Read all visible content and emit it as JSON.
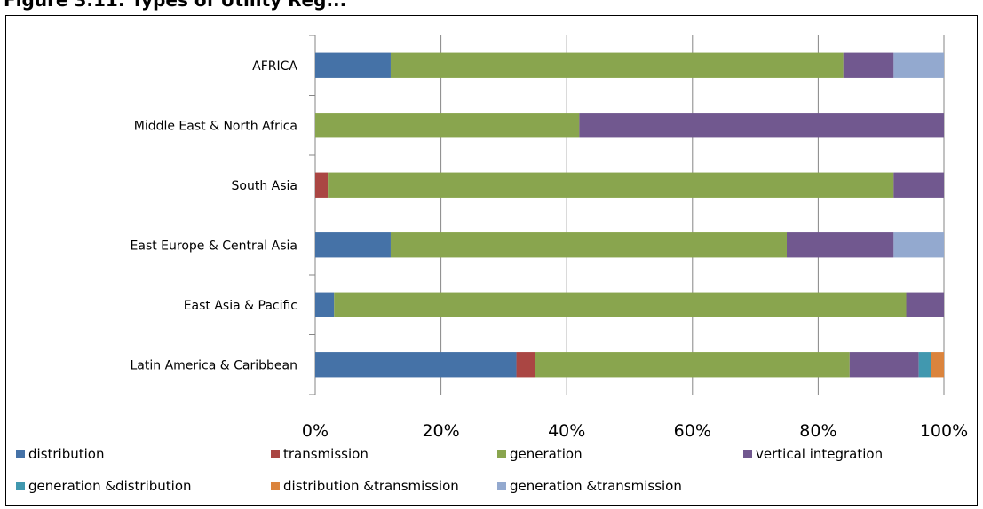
{
  "title_fragment": "Figure 3.11: Types of Utility Reg...",
  "chart_data": {
    "type": "bar",
    "orientation": "horizontal",
    "stacked": true,
    "percent": true,
    "categories": [
      "AFRICA",
      "Middle East & North Africa",
      "South Asia",
      "East Europe & Central Asia",
      "East Asia & Pacific",
      "Latin America & Caribbean"
    ],
    "series": [
      {
        "name": "distribution",
        "color": "#4572A7",
        "values": [
          12,
          0,
          0,
          12,
          3,
          32
        ]
      },
      {
        "name": "transmission",
        "color": "#AA4643",
        "values": [
          0,
          0,
          2,
          0,
          0,
          3
        ]
      },
      {
        "name": "generation",
        "color": "#89A54E",
        "values": [
          72,
          42,
          90,
          63,
          91,
          50
        ]
      },
      {
        "name": "vertical integration",
        "color": "#71588F",
        "values": [
          8,
          58,
          8,
          17,
          6,
          11
        ]
      },
      {
        "name": "generation &distribution",
        "color": "#4198AF",
        "values": [
          0,
          0,
          0,
          0,
          0,
          2
        ]
      },
      {
        "name": "distribution &transmission",
        "color": "#DB843D",
        "values": [
          0,
          0,
          0,
          0,
          0,
          2
        ]
      },
      {
        "name": "generation &transmission",
        "color": "#93A9CF",
        "values": [
          8,
          0,
          0,
          8,
          0,
          0
        ]
      }
    ],
    "xticks": [
      "0%",
      "20%",
      "40%",
      "60%",
      "80%",
      "100%"
    ],
    "xlim": [
      0,
      100
    ],
    "grid": "vertical",
    "legend_position": "bottom"
  }
}
